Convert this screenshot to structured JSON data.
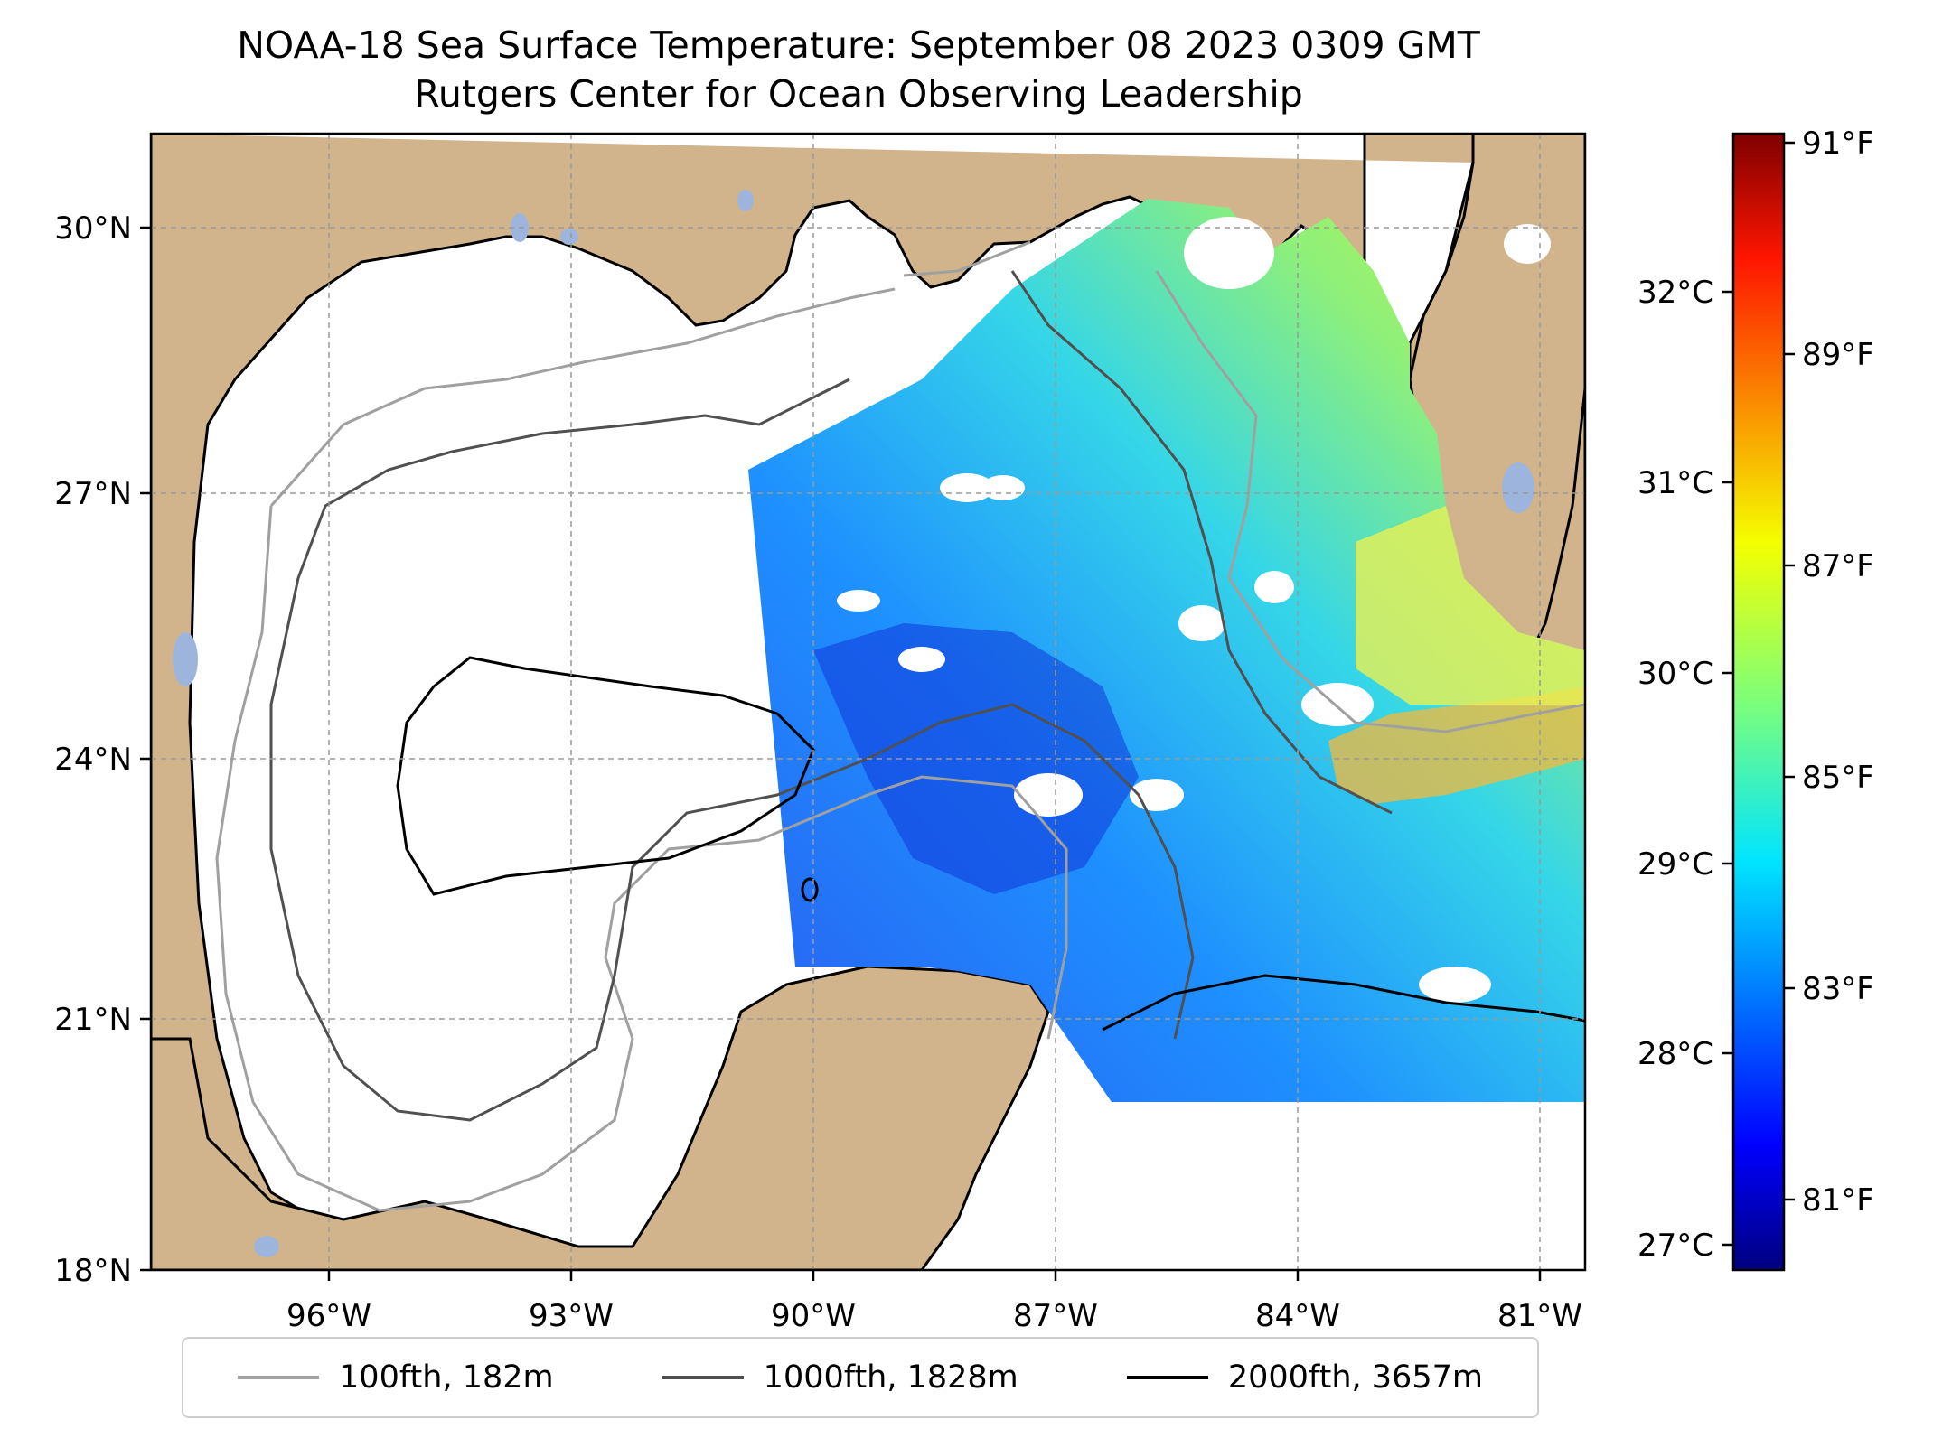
{
  "title": {
    "line1": "NOAA-18 Sea Surface Temperature: September 08 2023 0309 GMT",
    "line2": "Rutgers Center for Ocean Observing Leadership"
  },
  "map": {
    "longitude_ticks": [
      "96°W",
      "93°W",
      "90°W",
      "87°W",
      "84°W",
      "81°W"
    ],
    "latitude_ticks": [
      "30°N",
      "27°N",
      "24°N",
      "21°N",
      "18°N"
    ],
    "extent": {
      "lon": [
        -98.3,
        -80.6
      ],
      "lat": [
        18.0,
        30.9
      ]
    },
    "gridlines": true,
    "colors": {
      "land": "#d2b48c",
      "ocean_no_data": "#ffffff",
      "lakes": "#9db5dc",
      "coastline": "#000000"
    }
  },
  "colorbar": {
    "colormap": "jet",
    "fahrenheit_ticks": [
      "91°F",
      "89°F",
      "87°F",
      "85°F",
      "83°F",
      "81°F"
    ],
    "celsius_ticks": [
      "32°C",
      "31°C",
      "30°C",
      "29°C",
      "28°C",
      "27°C"
    ]
  },
  "legend": {
    "items": [
      {
        "label": "100fth, 182m",
        "color": "#a0a0a0"
      },
      {
        "label": "1000fth, 1828m",
        "color": "#505050"
      },
      {
        "label": "2000fth, 3657m",
        "color": "#000000"
      }
    ]
  }
}
